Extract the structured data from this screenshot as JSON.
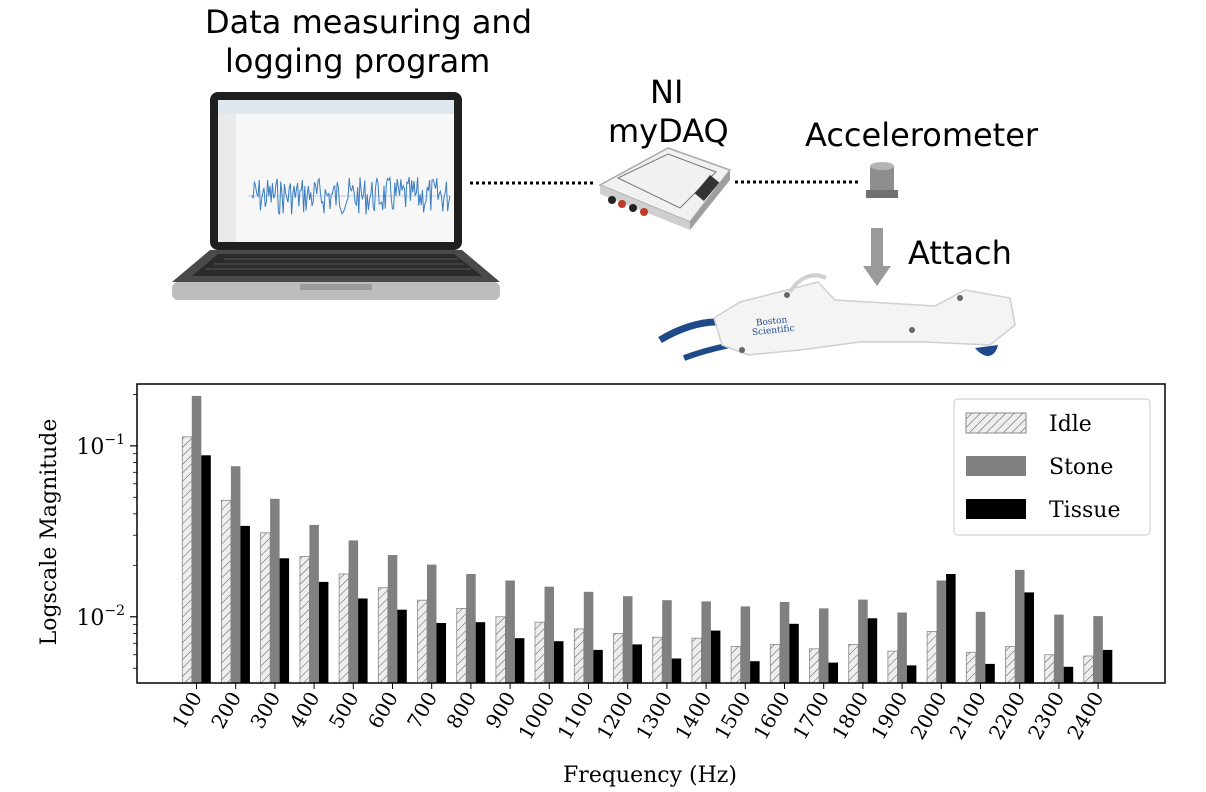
{
  "diagram": {
    "laptop_caption_line1": "Data measuring and",
    "laptop_caption_line2": "logging program",
    "daq_caption_line1": "NI",
    "daq_caption_line2": "myDAQ",
    "sensor_caption": "Accelerometer",
    "attach_caption": "Attach",
    "device_brand_line1": "Boston",
    "device_brand_line2": "Scientific"
  },
  "chart_data": {
    "type": "bar",
    "title": "",
    "xlabel": "Frequency (Hz)",
    "ylabel": "Logscale Magnitude",
    "yscale": "log",
    "ylim": [
      0.0041,
      0.23
    ],
    "yticks": [
      {
        "value": 0.1,
        "base": "10",
        "exp": "−1"
      },
      {
        "value": 0.01,
        "base": "10",
        "exp": "−2"
      }
    ],
    "grid": false,
    "legend_position": "top-right",
    "categories": [
      "100",
      "200",
      "300",
      "400",
      "500",
      "600",
      "700",
      "800",
      "900",
      "1000",
      "1100",
      "1200",
      "1300",
      "1400",
      "1500",
      "1600",
      "1700",
      "1800",
      "1900",
      "2000",
      "2100",
      "2200",
      "2300",
      "2400"
    ],
    "series": [
      {
        "name": "Idle",
        "style": "hatched",
        "color": "#e6e6e6",
        "values": [
          0.113,
          0.048,
          0.031,
          0.0225,
          0.0178,
          0.0148,
          0.0125,
          0.0112,
          0.01,
          0.0093,
          0.0085,
          0.008,
          0.0076,
          0.0075,
          0.0067,
          0.0069,
          0.0065,
          0.0069,
          0.0063,
          0.0082,
          0.0062,
          0.0067,
          0.006,
          0.0059
        ]
      },
      {
        "name": "Stone",
        "style": "solid",
        "color": "#808080",
        "values": [
          0.196,
          0.076,
          0.049,
          0.0345,
          0.028,
          0.023,
          0.0202,
          0.0178,
          0.0163,
          0.015,
          0.014,
          0.0132,
          0.0125,
          0.0123,
          0.0115,
          0.0122,
          0.0112,
          0.0126,
          0.0106,
          0.0163,
          0.0107,
          0.0188,
          0.0103,
          0.0101
        ]
      },
      {
        "name": "Tissue",
        "style": "solid",
        "color": "#000000",
        "values": [
          0.088,
          0.034,
          0.022,
          0.016,
          0.0128,
          0.011,
          0.0092,
          0.0093,
          0.0075,
          0.0072,
          0.0064,
          0.0069,
          0.0057,
          0.0083,
          0.0055,
          0.0091,
          0.0054,
          0.0098,
          0.0052,
          0.0178,
          0.0053,
          0.0139,
          0.0051,
          0.0064
        ]
      }
    ]
  }
}
